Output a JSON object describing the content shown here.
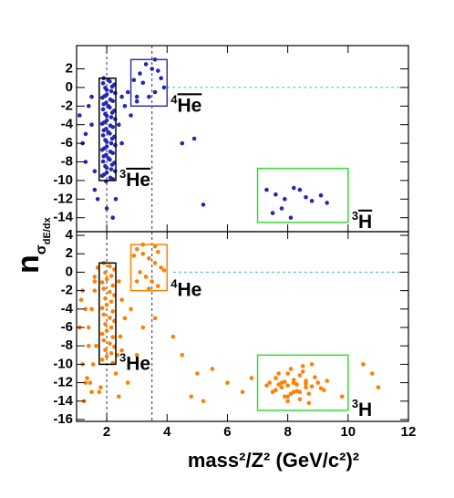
{
  "chart_data": [
    {
      "type": "scatter",
      "ylabel": {
        "main": "n",
        "sub": "σ",
        "subsub": "dE/dx"
      },
      "xlim": [
        1,
        12
      ],
      "xticks": [
        2,
        4,
        6,
        8,
        10,
        12
      ],
      "ylim": [
        -15.5,
        4.5
      ],
      "yticks": [
        -14,
        -12,
        -10,
        -8,
        -6,
        -4,
        -2,
        0,
        2
      ],
      "vlines": [
        2,
        3.5
      ],
      "hline": {
        "y": 0,
        "xmin": 4,
        "color": "#33bbdd"
      },
      "boxes": [
        {
          "sup": "3",
          "label": "He",
          "overline": true,
          "x": [
            1.75,
            2.3
          ],
          "y": [
            -10,
            1
          ],
          "color": "#000000"
        },
        {
          "sup": "4",
          "label": "He",
          "overline": true,
          "x": [
            2.8,
            4
          ],
          "y": [
            -2,
            3
          ],
          "color": "#3333aa"
        },
        {
          "sup": "3",
          "label": "H",
          "overline": true,
          "x": [
            7,
            10
          ],
          "y": [
            -14.5,
            -8.7
          ],
          "color": "#33dd33"
        }
      ],
      "series": [
        {
          "color": "#2626b5",
          "x": [
            1.9,
            2.1,
            2.25,
            1.95,
            2.15,
            2.0,
            1.85,
            2.2,
            1.9,
            2.1,
            2.25,
            1.95,
            2.15,
            2.0,
            1.85,
            2.2,
            1.9,
            2.1,
            2.25,
            1.95,
            2.15,
            2.0,
            1.85,
            2.2,
            1.9,
            2.1,
            2.25,
            1.95,
            2.15,
            2.0,
            1.85,
            2.2,
            2.05,
            1.88,
            2.18,
            2.0,
            2.28,
            1.92,
            2.12,
            1.98,
            2.05,
            1.88,
            2.18,
            2.0,
            2.28,
            1.92,
            2.12,
            1.98,
            2.05,
            1.88,
            2.18,
            2.0,
            2.28,
            1.92,
            2.12,
            1.98,
            2.05,
            1.88,
            2.18,
            2.0,
            2.28,
            1.92,
            2.12,
            1.98,
            1.2,
            1.3,
            1.5,
            1.4,
            1.6,
            1.5,
            1.7,
            1.6,
            2.5,
            2.6,
            2.8,
            2.4,
            2.5,
            2.3,
            2.2,
            2.0,
            1.1,
            1.3,
            2.7,
            3.0,
            3.1,
            3.3,
            3.5,
            3.7,
            3.2,
            3.6,
            3.9,
            3.4,
            3.0,
            3.8,
            3.6,
            2.9,
            4.5,
            4.9,
            5.2,
            7.3,
            7.6,
            7.9,
            8.2,
            8.4,
            8.6,
            8.8,
            9.1,
            7.5,
            8.1,
            9.3,
            7.8
          ],
          "y": [
            1,
            0.65,
            0.3,
            -0.05,
            -0.4,
            -0.75,
            -1.1,
            -1.45,
            -1.8,
            -2.15,
            -2.5,
            -2.85,
            -3.2,
            -3.55,
            -3.9,
            -4.25,
            -4.6,
            -4.95,
            -5.3,
            -5.65,
            -6,
            -6.35,
            -6.7,
            -7.05,
            -7.4,
            -7.75,
            -8.1,
            -8.45,
            -8.8,
            -9.15,
            -9.5,
            -9.85,
            0.8,
            0.45,
            0.1,
            -0.25,
            -0.6,
            -0.95,
            -1.3,
            -1.65,
            -2.0,
            -2.35,
            -2.7,
            -3.05,
            -3.4,
            -3.75,
            -4.1,
            -4.45,
            -4.8,
            -5.15,
            -5.5,
            -5.85,
            -6.2,
            -6.55,
            -6.9,
            -7.25,
            -7.6,
            -7.95,
            -8.3,
            -8.65,
            -9.0,
            -9.35,
            -9.7,
            -10.1,
            -6,
            -8,
            -4,
            -2,
            -9,
            -1,
            -12,
            -11,
            -1,
            -2,
            -3,
            -4,
            -6,
            -12,
            -14,
            -13,
            -3,
            -5,
            -0.5,
            -1,
            1.5,
            2.5,
            2,
            1.8,
            0.5,
            -0.5,
            0,
            -1,
            -1.5,
            1,
            3,
            0.8,
            -6,
            -5.5,
            -12.6,
            -11,
            -11.5,
            -12,
            -10.8,
            -11,
            -11.8,
            -12.2,
            -11.6,
            -13.5,
            -14,
            -12.4,
            -13
          ]
        }
      ]
    },
    {
      "type": "scatter",
      "xlabel": "mass²/Z² (GeV/c²)²",
      "xlim": [
        1,
        12
      ],
      "xticks": [
        2,
        4,
        6,
        8,
        10,
        12
      ],
      "ylim": [
        -16.2,
        4.4
      ],
      "yticks": [
        -16,
        -14,
        -12,
        -10,
        -8,
        -6,
        -4,
        -2,
        0,
        2,
        4
      ],
      "vlines": [
        2,
        3.5
      ],
      "hline": {
        "y": 0,
        "xmin": 4.2,
        "color": "#33bbdd"
      },
      "boxes": [
        {
          "sup": "3",
          "label": "He",
          "overline": false,
          "x": [
            1.75,
            2.3
          ],
          "y": [
            -10,
            1
          ],
          "color": "#000000"
        },
        {
          "sup": "4",
          "label": "He",
          "overline": false,
          "x": [
            2.8,
            4
          ],
          "y": [
            -2,
            3
          ],
          "color": "#ff8000"
        },
        {
          "sup": "3",
          "label": "H",
          "overline": false,
          "x": [
            7,
            10
          ],
          "y": [
            -15,
            -9
          ],
          "color": "#33dd33"
        }
      ],
      "series": [
        {
          "color": "#ff8000",
          "x": [
            1.9,
            2.1,
            2.25,
            1.95,
            2.15,
            2.0,
            1.85,
            2.2,
            1.9,
            2.1,
            2.25,
            1.95,
            2.15,
            2.0,
            1.85,
            2.2,
            1.9,
            2.1,
            2.25,
            1.95,
            2.15,
            2.0,
            1.85,
            2.2,
            1.9,
            2.1,
            2.25,
            1.95,
            2.15,
            2.0,
            1.85,
            2.2,
            1.7,
            2.4,
            1.6,
            2.5,
            1.5,
            2.6,
            1.4,
            2.45,
            1.65,
            2.35,
            1.55,
            2.3,
            1.45,
            1.75,
            1.35,
            1.8,
            1.25,
            2.4,
            1.6,
            2.5,
            1.2,
            1.3,
            1.1,
            1.4,
            1.2,
            1.3,
            1.5,
            1.15,
            1.6,
            1.25,
            3.0,
            3.2,
            3.4,
            3.6,
            3.8,
            3.1,
            3.3,
            3.5,
            3.7,
            2.9,
            3.2,
            3.6,
            3.9,
            3.4,
            3.0,
            3.7,
            2.8,
            3.2,
            4.5,
            5.0,
            5.5,
            6.0,
            6.5,
            4.2,
            3.6,
            5.2,
            6.8,
            3.0,
            2.7,
            4.8,
            10.5,
            10.8,
            11.0,
            9.8,
            7.4,
            7.6,
            7.8,
            8.0,
            8.2,
            8.4,
            8.6,
            8.8,
            9.0,
            9.2,
            7.5,
            7.7,
            7.9,
            8.1,
            8.3,
            8.5,
            8.7,
            8.9,
            9.1,
            7.6,
            7.8,
            8.0,
            8.2,
            8.4,
            8.6,
            8.8,
            8.0,
            8.2,
            8.4,
            8.3,
            8.1,
            7.9,
            8.5,
            8.7,
            7.3,
            9.3,
            8.2,
            8.0,
            8.6,
            7.7
          ],
          "y": [
            1,
            0.65,
            0.3,
            -0.05,
            -0.4,
            -0.75,
            -1.1,
            -1.45,
            -1.8,
            -2.15,
            -2.5,
            -2.85,
            -3.2,
            -3.55,
            -3.9,
            -4.25,
            -4.6,
            -4.95,
            -5.3,
            -5.65,
            -6,
            -6.35,
            -6.7,
            -7.05,
            -7.4,
            -7.75,
            -8.1,
            -8.45,
            -8.8,
            -9.15,
            -9.5,
            -9.85,
            0.5,
            -1,
            -2,
            -3,
            -4,
            -5,
            -6,
            -7,
            -8,
            -9,
            -10,
            -11,
            -12,
            -13,
            -11.5,
            -12.5,
            -14,
            -13.5,
            -0.5,
            -8.5,
            -2,
            -4,
            -6,
            -8,
            -10,
            -12,
            -13,
            -3,
            -1,
            -14,
            2.5,
            2,
            1.5,
            1,
            0.5,
            0,
            -0.5,
            -1,
            -1.5,
            1.8,
            3,
            2.8,
            0.2,
            -1.8,
            -1,
            2.2,
            -4,
            -6,
            -9,
            -11,
            -10.5,
            -12,
            -13,
            -7,
            -5,
            -14,
            -11.5,
            -9,
            -12,
            -13.5,
            -10,
            -11,
            -12.5,
            -13.5,
            -12,
            -11.5,
            -12.5,
            -11,
            -12,
            -13,
            -11.8,
            -12.4,
            -12,
            -12.8,
            -13,
            -11,
            -13.5,
            -10.5,
            -12.2,
            -10.8,
            -13.2,
            -11.4,
            -12.6,
            -12.8,
            -12,
            -14,
            -13,
            -11.2,
            -12.5,
            -10,
            -12.3,
            -11.7,
            -13.8,
            -12.9,
            -13.2,
            -11.9,
            -10.2,
            -14.2,
            -12.3,
            -11.8,
            -12,
            -13.5,
            -12.1,
            -12.2
          ]
        }
      ]
    }
  ]
}
